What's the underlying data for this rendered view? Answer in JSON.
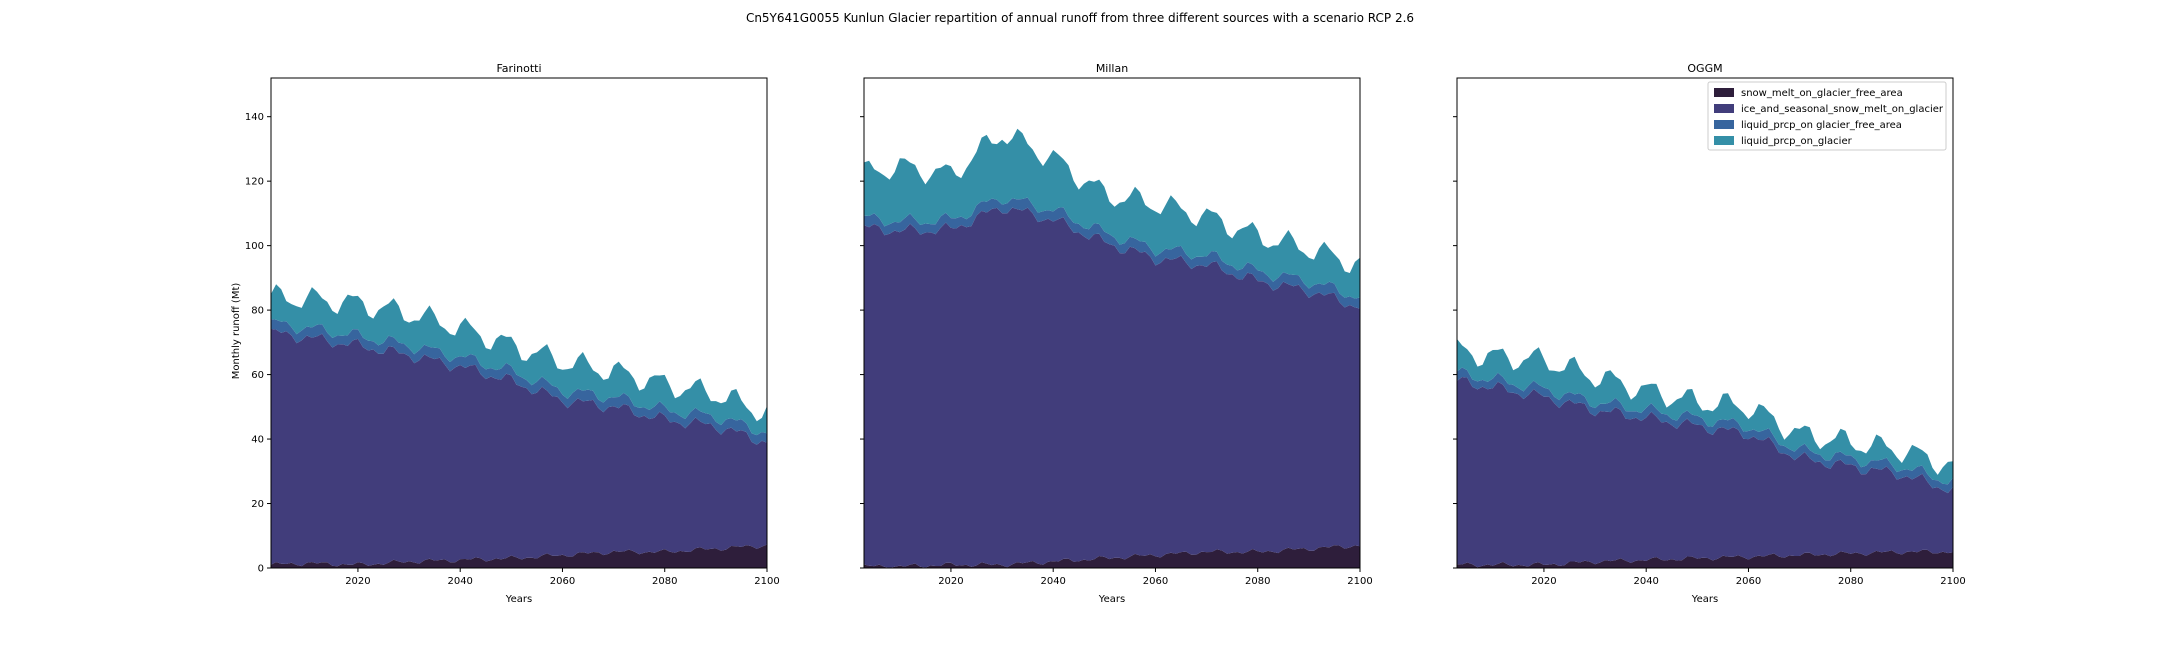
{
  "figure": {
    "title": "Cn5Y641G0055 Kunlun Glacier repartition of annual runoff from three different sources with a scenario RCP 2.6"
  },
  "colors": {
    "snow_melt_on_glacier_free_area": "#2e1e3b",
    "ice_and_seasonal_snow_melt_on_glacier": "#413d7b",
    "liquid_prcp_on_glacier_free_area": "#37659e",
    "liquid_prcp_on_glacier": "#348fa7"
  },
  "chart_data": [
    {
      "type": "area",
      "stacked": true,
      "title": "Farinotti",
      "xlabel": "Years",
      "ylabel": "Monthly runoff (Mt)",
      "xlim": [
        2003,
        2100
      ],
      "ylim": [
        0,
        152
      ],
      "xticks": [
        2020,
        2040,
        2060,
        2080,
        2100
      ],
      "yticks": [
        0,
        20,
        40,
        60,
        80,
        100,
        120,
        140
      ],
      "x": [
        2003,
        2010,
        2020,
        2030,
        2040,
        2050,
        2060,
        2070,
        2080,
        2090,
        2100
      ],
      "series": [
        {
          "name": "snow_melt_on_glacier_free_area",
          "values": [
            1,
            1.5,
            1,
            2,
            2.5,
            3,
            4,
            5,
            5,
            6,
            7
          ]
        },
        {
          "name": "ice_and_seasonal_snow_melt_on_glacier",
          "values": [
            72,
            70,
            68,
            64,
            60,
            55,
            48,
            45,
            41,
            38,
            32
          ]
        },
        {
          "name": "liquid_prcp_on_glacier_free_area",
          "values": [
            3,
            3,
            3,
            3,
            3,
            3,
            3,
            3,
            3,
            3,
            3
          ]
        },
        {
          "name": "liquid_prcp_on_glacier",
          "values": [
            8,
            9,
            10,
            10,
            9,
            8,
            9,
            8,
            8,
            7,
            6
          ]
        }
      ]
    },
    {
      "type": "area",
      "stacked": true,
      "title": "Millan",
      "xlabel": "Years",
      "ylabel": "",
      "xlim": [
        2003,
        2100
      ],
      "ylim": [
        0,
        152
      ],
      "xticks": [
        2020,
        2040,
        2060,
        2080,
        2100
      ],
      "yticks": [],
      "x": [
        2003,
        2010,
        2020,
        2030,
        2040,
        2050,
        2060,
        2070,
        2080,
        2090,
        2100
      ],
      "series": [
        {
          "name": "snow_melt_on_glacier_free_area",
          "values": [
            0.5,
            0.5,
            1,
            1,
            2,
            3,
            4,
            5,
            5,
            6,
            7
          ]
        },
        {
          "name": "ice_and_seasonal_snow_melt_on_glacier",
          "values": [
            105,
            104,
            104,
            111,
            106,
            98,
            92,
            89,
            84,
            80,
            74
          ]
        },
        {
          "name": "liquid_prcp_on_glacier_free_area",
          "values": [
            3,
            3,
            3,
            3,
            3,
            3,
            3,
            3,
            3,
            3,
            3
          ]
        },
        {
          "name": "liquid_prcp_on_glacier",
          "values": [
            14,
            17,
            14,
            20,
            16,
            12,
            14,
            12,
            11,
            10,
            10
          ]
        }
      ]
    },
    {
      "type": "area",
      "stacked": true,
      "title": "OGGM",
      "xlabel": "Years",
      "ylabel": "",
      "xlim": [
        2003,
        2100
      ],
      "ylim": [
        0,
        152
      ],
      "xticks": [
        2020,
        2040,
        2060,
        2080,
        2100
      ],
      "yticks": [],
      "legend": "top-right",
      "x": [
        2003,
        2010,
        2020,
        2030,
        2040,
        2050,
        2060,
        2070,
        2080,
        2090,
        2100
      ],
      "series": [
        {
          "name": "snow_melt_on_glacier_free_area",
          "values": [
            1,
            1,
            1,
            2,
            2.5,
            3,
            3.5,
            4,
            4.5,
            5,
            5
          ]
        },
        {
          "name": "ice_and_seasonal_snow_melt_on_glacier",
          "values": [
            57,
            55,
            52,
            47,
            44,
            41,
            38,
            30,
            27,
            24,
            19
          ]
        },
        {
          "name": "liquid_prcp_on_glacier_free_area",
          "values": [
            2.5,
            2.5,
            2.5,
            2.5,
            2.5,
            2.5,
            2.5,
            2.5,
            2.5,
            2.5,
            2.5
          ]
        },
        {
          "name": "liquid_prcp_on_glacier",
          "values": [
            7,
            7,
            9,
            8,
            6,
            5,
            6,
            5,
            5,
            5,
            5
          ]
        }
      ]
    }
  ]
}
